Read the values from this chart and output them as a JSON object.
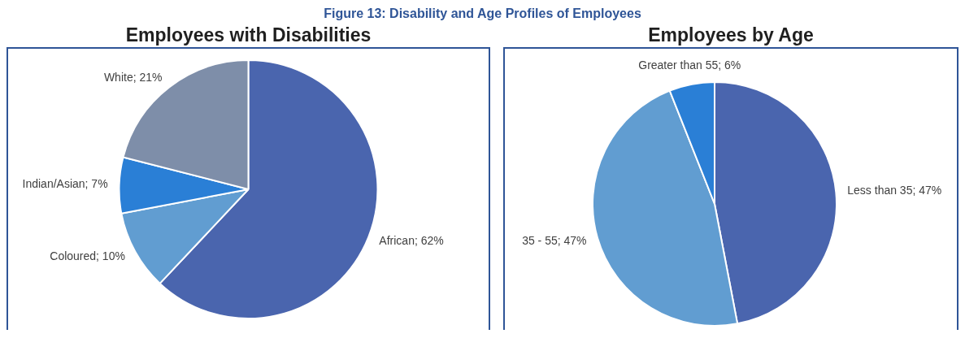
{
  "chart_data": [
    {
      "type": "other",
      "title": "Figure 13: Disability and Age Profiles of Employees"
    },
    {
      "type": "pie",
      "title": "Employees with Disabilities",
      "categories": [
        "African",
        "Coloured",
        "Indian/Asian",
        "White"
      ],
      "values": [
        62,
        10,
        7,
        21
      ],
      "value_labels": [
        "62%",
        "10%",
        "7%",
        "21%"
      ],
      "colors": [
        "#4a65ae",
        "#619dd1",
        "#2a7fd6",
        "#7e8ea9"
      ],
      "legend": false
    },
    {
      "type": "pie",
      "title": "Employees by Age",
      "categories": [
        "Less than 35",
        "35 - 55",
        "Greater than 55"
      ],
      "values": [
        47,
        47,
        6
      ],
      "value_labels": [
        "47%",
        "47%",
        "6%"
      ],
      "colors": [
        "#4a65ae",
        "#619dd1",
        "#2a7fd6"
      ],
      "legend": false
    }
  ]
}
